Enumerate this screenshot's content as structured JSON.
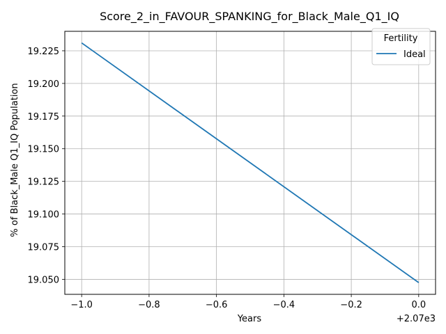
{
  "chart_data": {
    "type": "line",
    "title": "Score_2_in_FAVOUR_SPANKING_for_Black_Male_Q1_IQ",
    "xlabel": "Years",
    "ylabel": "% of Black_Male Q1_IQ Population",
    "x_offset_text": "+2.07e3",
    "x": [
      2069,
      2070
    ],
    "series": [
      {
        "name": "Ideal",
        "values": [
          19.231,
          19.0475
        ],
        "color": "#1f77b4"
      }
    ],
    "xlim": [
      2068.95,
      2070.05
    ],
    "ylim": [
      19.0385,
      19.2399
    ],
    "x_ticks": [
      2069,
      2069.2,
      2069.4,
      2069.6,
      2069.8,
      2070
    ],
    "x_tick_labels": [
      "−1.0",
      "−0.8",
      "−0.6",
      "−0.4",
      "−0.2",
      "0.0"
    ],
    "y_ticks": [
      19.05,
      19.075,
      19.1,
      19.125,
      19.15,
      19.175,
      19.2,
      19.225
    ],
    "y_tick_labels": [
      "19.050",
      "19.075",
      "19.100",
      "19.125",
      "19.150",
      "19.175",
      "19.200",
      "19.225"
    ],
    "grid": true,
    "legend_title": "Fertility",
    "legend_position": "top-right"
  }
}
